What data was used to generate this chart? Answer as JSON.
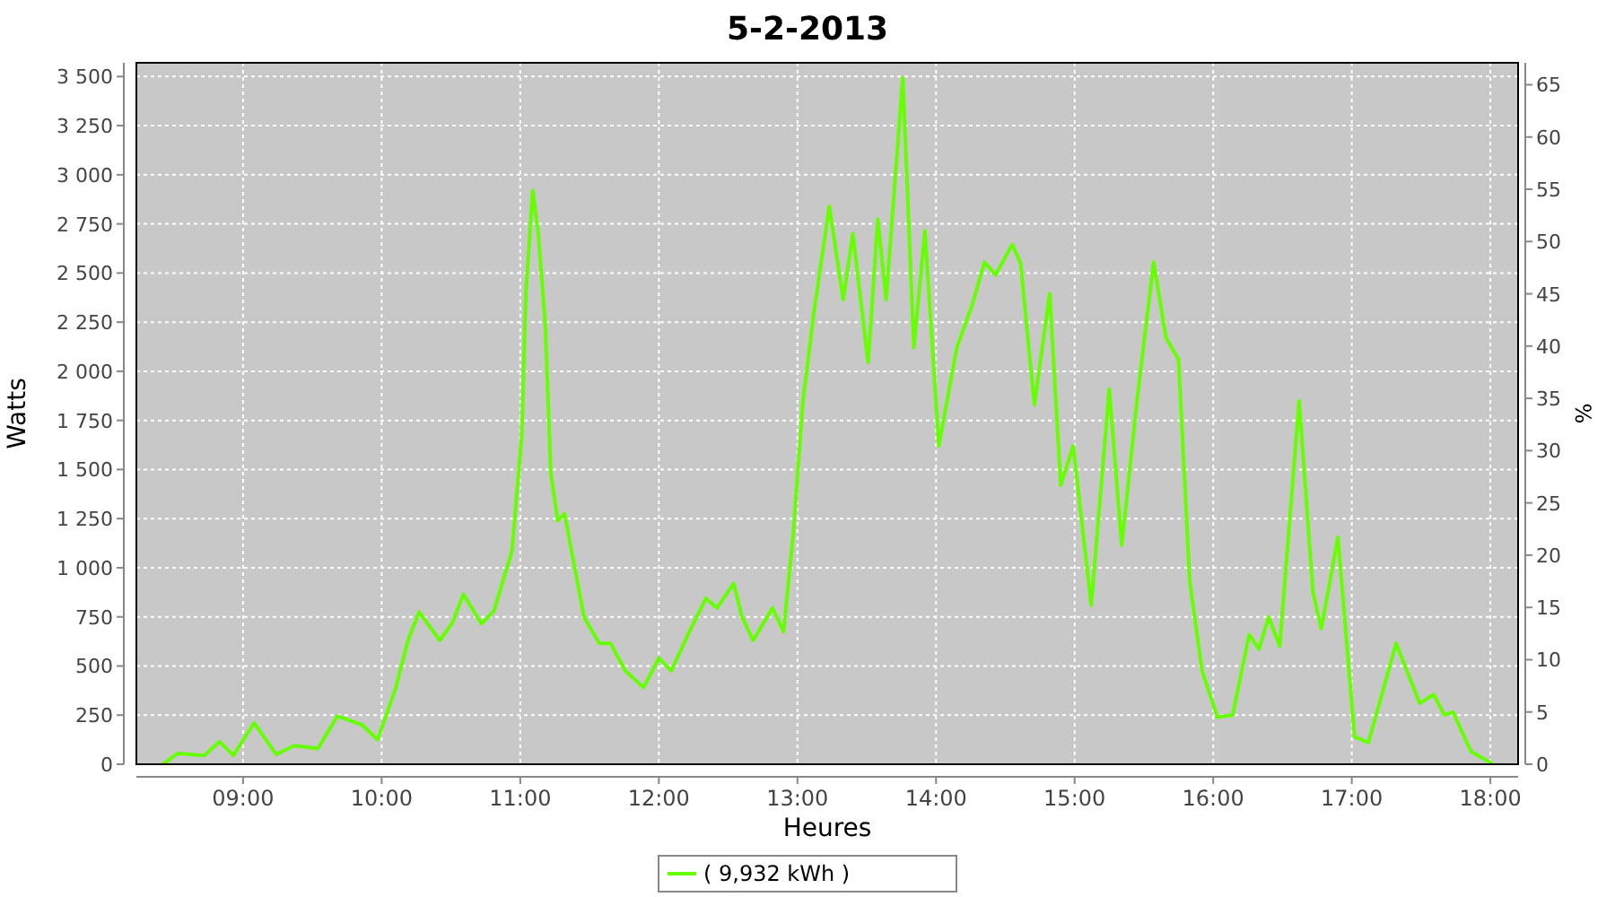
{
  "chart_data": {
    "type": "line",
    "title": "5-2-2013",
    "xlabel": "Heures",
    "ylabel": "Watts",
    "y2label": "%",
    "xlim": [
      8.23,
      18.2
    ],
    "xticks": [
      {
        "value": 9,
        "label": "09:00"
      },
      {
        "value": 10,
        "label": "10:00"
      },
      {
        "value": 11,
        "label": "11:00"
      },
      {
        "value": 12,
        "label": "12:00"
      },
      {
        "value": 13,
        "label": "13:00"
      },
      {
        "value": 14,
        "label": "14:00"
      },
      {
        "value": 15,
        "label": "15:00"
      },
      {
        "value": 16,
        "label": "16:00"
      },
      {
        "value": 17,
        "label": "17:00"
      },
      {
        "value": 18,
        "label": "18:00"
      }
    ],
    "ylim": [
      0,
      3570
    ],
    "yticks": [
      0,
      250,
      500,
      750,
      {
        "value": 1000,
        "label": "1 000"
      },
      {
        "value": 1250,
        "label": "1 250"
      },
      {
        "value": 1500,
        "label": "1 500"
      },
      {
        "value": 1750,
        "label": "1 750"
      },
      {
        "value": 2000,
        "label": "2 000"
      },
      {
        "value": 2250,
        "label": "2 250"
      },
      {
        "value": 2500,
        "label": "2 500"
      },
      {
        "value": 2750,
        "label": "2 750"
      },
      {
        "value": 3000,
        "label": "3 000"
      },
      {
        "value": 3250,
        "label": "3 250"
      },
      {
        "value": 3500,
        "label": "3 500"
      }
    ],
    "y2lim": [
      0,
      67.1
    ],
    "y2ticks": [
      0,
      5,
      10,
      15,
      20,
      25,
      30,
      35,
      40,
      45,
      50,
      55,
      60,
      65
    ],
    "grid": true,
    "legend": "bottom",
    "line_style": "solid",
    "series": [
      {
        "name": "( 9,932 kWh )",
        "color": "#66ff00",
        "x": [
          8.42,
          8.53,
          8.72,
          8.83,
          8.93,
          9.08,
          9.24,
          9.37,
          9.54,
          9.68,
          9.86,
          9.97,
          10.1,
          10.19,
          10.27,
          10.42,
          10.51,
          10.59,
          10.72,
          10.81,
          10.94,
          11.01,
          11.04,
          11.09,
          11.13,
          11.18,
          11.22,
          11.27,
          11.32,
          11.37,
          11.46,
          11.57,
          11.65,
          11.76,
          11.89,
          12.0,
          12.09,
          12.21,
          12.34,
          12.42,
          12.54,
          12.6,
          12.68,
          12.82,
          12.9,
          12.97,
          13.04,
          13.12,
          13.23,
          13.33,
          13.4,
          13.51,
          13.58,
          13.64,
          13.76,
          13.84,
          13.92,
          14.02,
          14.15,
          14.26,
          14.35,
          14.43,
          14.55,
          14.61,
          14.71,
          14.82,
          14.9,
          14.99,
          15.12,
          15.25,
          15.34,
          15.45,
          15.57,
          15.66,
          15.75,
          15.83,
          15.92,
          16.03,
          16.14,
          16.26,
          16.33,
          16.4,
          16.48,
          16.62,
          16.72,
          16.78,
          16.9,
          17.02,
          17.12,
          17.32,
          17.49,
          17.59,
          17.67,
          17.73,
          17.86,
          18.01
        ],
        "values": [
          0,
          55,
          45,
          115,
          45,
          210,
          50,
          95,
          80,
          245,
          200,
          125,
          385,
          630,
          775,
          630,
          720,
          865,
          715,
          780,
          1085,
          1665,
          2395,
          2920,
          2700,
          2245,
          1485,
          1240,
          1275,
          1085,
          750,
          615,
          615,
          475,
          390,
          540,
          475,
          660,
          845,
          795,
          920,
          750,
          630,
          795,
          675,
          1175,
          1850,
          2305,
          2840,
          2365,
          2700,
          2045,
          2775,
          2365,
          3495,
          2120,
          2715,
          1620,
          2120,
          2335,
          2555,
          2490,
          2645,
          2550,
          1830,
          2395,
          1420,
          1620,
          810,
          1910,
          1115,
          1850,
          2555,
          2170,
          2060,
          935,
          475,
          240,
          250,
          660,
          585,
          750,
          600,
          1850,
          875,
          690,
          1155,
          140,
          110,
          615,
          310,
          355,
          250,
          265,
          65,
          5
        ]
      }
    ]
  }
}
